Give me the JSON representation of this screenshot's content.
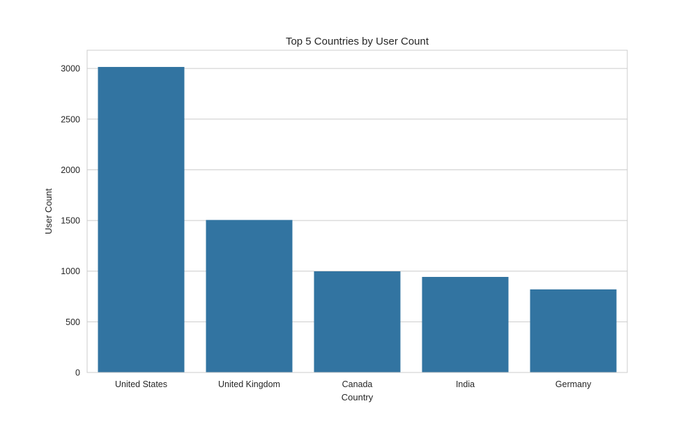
{
  "chart_data": {
    "type": "bar",
    "title": "Top 5 Countries by User Count",
    "xlabel": "Country",
    "ylabel": "User Count",
    "categories": [
      "United States",
      "United Kingdom",
      "Canada",
      "India",
      "Germany"
    ],
    "values": [
      3015,
      1505,
      998,
      943,
      820
    ],
    "ylim": [
      0,
      3180
    ],
    "yticks": [
      0,
      500,
      1000,
      1500,
      2000,
      2500,
      3000
    ],
    "ytick_labels": [
      "0",
      "500",
      "1000",
      "1500",
      "2000",
      "2500",
      "3000"
    ],
    "grid": true,
    "bar_color": "#3274a1"
  }
}
